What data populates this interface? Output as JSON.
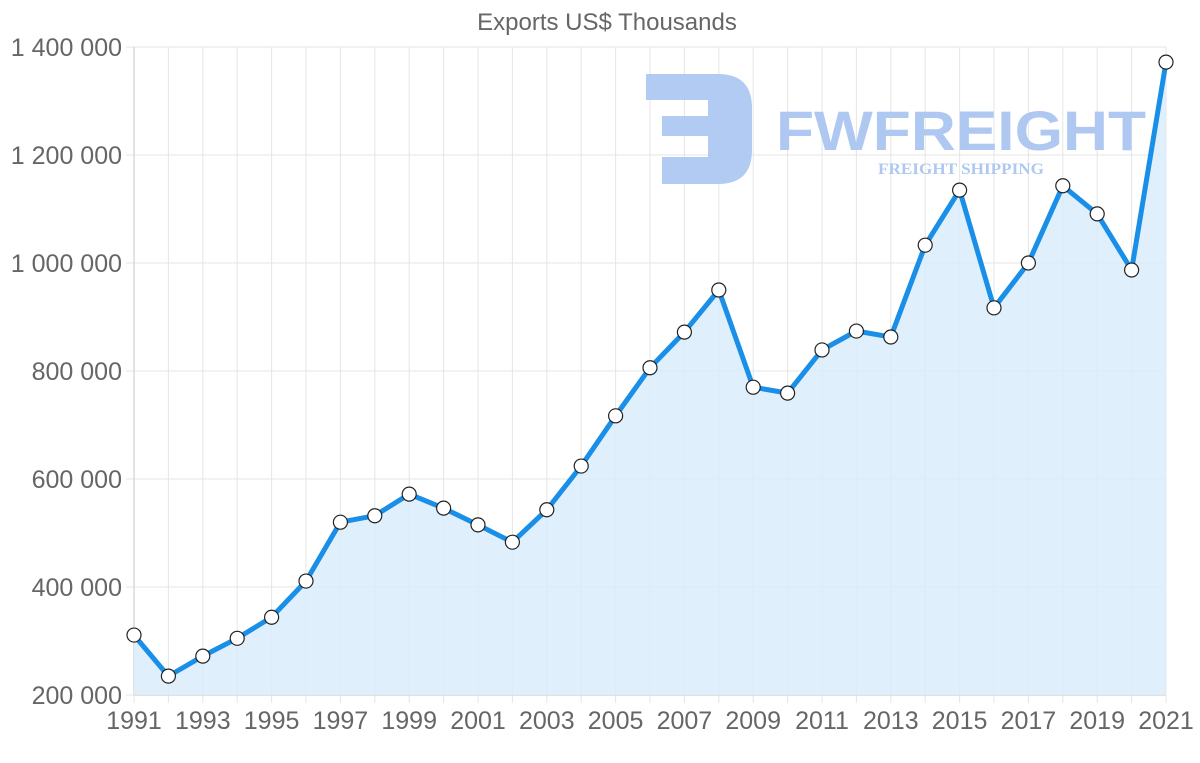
{
  "chart_data": {
    "type": "area",
    "title": "Exports US$ Thousands",
    "xlabel": "",
    "ylabel": "",
    "ylim": [
      200000,
      1400000
    ],
    "yticks": [
      200000,
      400000,
      600000,
      800000,
      1000000,
      1200000,
      1400000
    ],
    "ytick_labels": [
      "200 000",
      "400 000",
      "600 000",
      "800 000",
      "1 000 000",
      "1 200 000",
      "1 400 000"
    ],
    "xtick_labels": [
      "1991",
      "1993",
      "1995",
      "1997",
      "1999",
      "2001",
      "2003",
      "2005",
      "2007",
      "2009",
      "2011",
      "2013",
      "2015",
      "2017",
      "2019",
      "2021"
    ],
    "grid": true,
    "legend": null,
    "categories": [
      1991,
      1992,
      1993,
      1994,
      1995,
      1996,
      1997,
      1998,
      1999,
      2000,
      2001,
      2002,
      2003,
      2004,
      2005,
      2006,
      2007,
      2008,
      2009,
      2010,
      2011,
      2012,
      2013,
      2014,
      2015,
      2016,
      2017,
      2018,
      2019,
      2020,
      2021
    ],
    "series": [
      {
        "name": "Exports US$ Thousands",
        "color": "#1a8fe8",
        "fill": "#d9ecfc",
        "values": [
          311000,
          235000,
          272000,
          305000,
          344000,
          411000,
          520000,
          532000,
          572000,
          546000,
          515000,
          483000,
          543000,
          624000,
          717000,
          806000,
          872000,
          950000,
          770000,
          759000,
          839000,
          874000,
          863000,
          1033000,
          1135000,
          917000,
          1000000,
          1143000,
          1091000,
          987000,
          1372000
        ]
      }
    ]
  },
  "watermark": {
    "brand": "FWFREIGHT",
    "tagline": "FREIGHT SHIPPING",
    "color": "#aec8f2"
  }
}
